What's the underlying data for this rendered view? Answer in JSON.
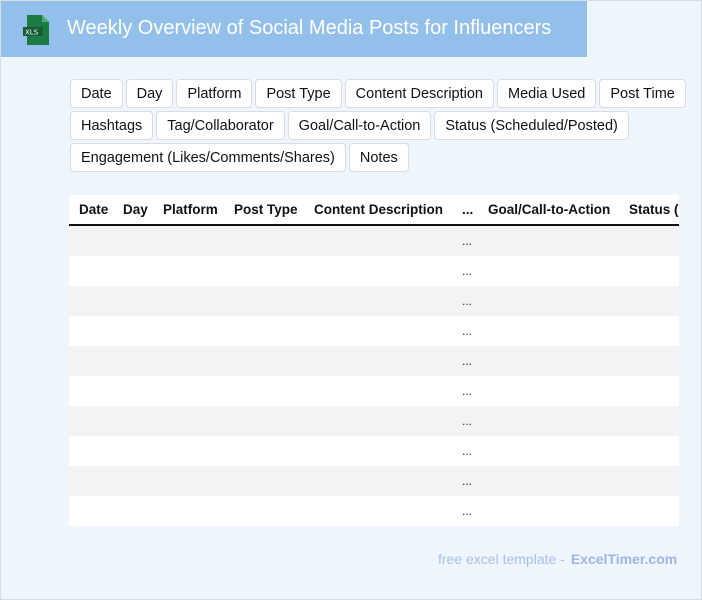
{
  "header": {
    "title": "Weekly Overview of Social Media Posts for Influencers",
    "icon": "xls-file-icon",
    "icon_label": "XLS"
  },
  "tags": [
    "Date",
    "Day",
    "Platform",
    "Post Type",
    "Content Description",
    "Media Used",
    "Post Time",
    "Hashtags",
    "Tag/Collaborator",
    "Goal/Call-to-Action",
    "Status (Scheduled/Posted)",
    "Engagement (Likes/Comments/Shares)",
    "Notes"
  ],
  "table": {
    "columns": [
      "Date",
      "Day",
      "Platform",
      "Post Type",
      "Content Description",
      "...",
      "Goal/Call-to-Action",
      "Status (Scheduled/Posted)"
    ],
    "rows": [
      [
        "",
        "",
        "",
        "",
        "",
        "...",
        "",
        ""
      ],
      [
        "",
        "",
        "",
        "",
        "",
        "...",
        "",
        ""
      ],
      [
        "",
        "",
        "",
        "",
        "",
        "...",
        "",
        ""
      ],
      [
        "",
        "",
        "",
        "",
        "",
        "...",
        "",
        ""
      ],
      [
        "",
        "",
        "",
        "",
        "",
        "...",
        "",
        ""
      ],
      [
        "",
        "",
        "",
        "",
        "",
        "...",
        "",
        ""
      ],
      [
        "",
        "",
        "",
        "",
        "",
        "...",
        "",
        ""
      ],
      [
        "",
        "",
        "",
        "",
        "",
        "...",
        "",
        ""
      ],
      [
        "",
        "",
        "",
        "",
        "",
        "...",
        "",
        ""
      ],
      [
        "",
        "",
        "",
        "",
        "",
        "...",
        "",
        ""
      ]
    ]
  },
  "footer": {
    "text": "free excel template -",
    "brand": "ExcelTimer.com"
  }
}
